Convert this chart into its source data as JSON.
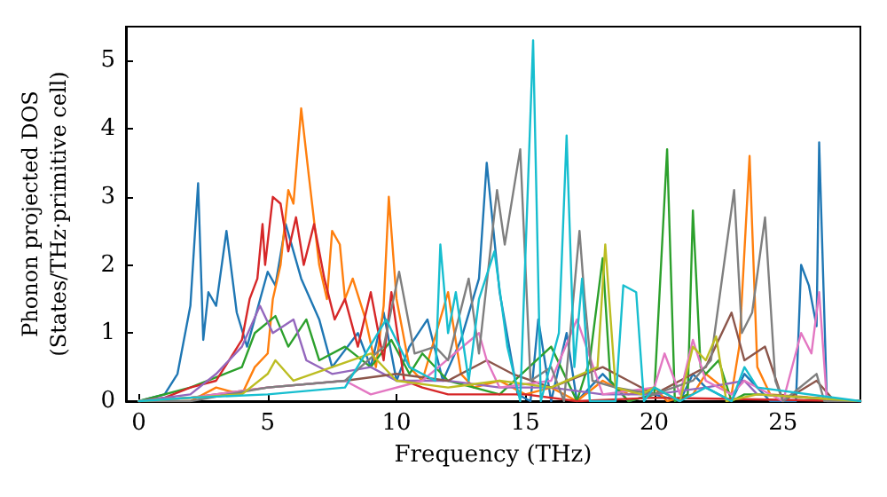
{
  "chart_data": {
    "type": "line",
    "xlabel": "Frequency (THz)",
    "ylabel": "Phonon projected DOS\n(States/THz·primitive cell)",
    "xlim": [
      -0.5,
      28
    ],
    "xticks": [
      0,
      5,
      10,
      15,
      20,
      25
    ],
    "ylim": [
      0,
      5.5
    ],
    "yticks": [
      0,
      1,
      2,
      3,
      4,
      5
    ],
    "grid": false,
    "marker": "none",
    "line_style": "solid",
    "series": [
      {
        "color": "#1f77b4",
        "x": [
          0,
          1,
          1.5,
          2,
          2.3,
          2.5,
          2.7,
          3,
          3.4,
          3.8,
          4.2,
          5,
          5.3,
          5.7,
          6.3,
          7,
          7.5,
          8.5,
          9,
          9.5,
          10,
          10.5,
          11.2,
          11.8,
          12.5,
          13.2,
          13.5,
          14,
          14.7,
          15.2,
          15.5,
          16,
          16.6,
          17,
          18,
          19,
          20,
          21,
          21.5,
          22,
          23,
          23.5,
          24,
          24.5,
          25.5,
          25.7,
          26,
          26.3,
          26.4,
          26.7,
          28
        ],
        "values": [
          0,
          0.1,
          0.4,
          1.4,
          3.2,
          0.9,
          1.6,
          1.4,
          2.5,
          1.3,
          0.8,
          1.9,
          1.7,
          2.6,
          1.8,
          1.2,
          0.5,
          1.0,
          0.5,
          1.3,
          0.3,
          0.8,
          1.2,
          0.3,
          0.9,
          1.8,
          3.5,
          1.6,
          0.1,
          0,
          1.2,
          0,
          1.0,
          0,
          0.4,
          0,
          0.1,
          0,
          0.4,
          0.2,
          0,
          0.4,
          0.2,
          0,
          0,
          2.0,
          1.7,
          1.1,
          3.8,
          0,
          0
        ]
      },
      {
        "color": "#ff7f0e",
        "x": [
          0,
          2,
          3,
          4,
          4.5,
          5,
          5.2,
          5.5,
          5.8,
          6,
          6.3,
          6.6,
          7,
          7.3,
          7.5,
          7.8,
          8,
          8.3,
          8.8,
          9.2,
          9.5,
          9.7,
          10,
          10.5,
          11,
          12,
          12.5,
          13,
          14,
          15,
          16,
          17,
          18,
          19,
          20,
          20.5,
          21.5,
          22,
          23,
          23.3,
          23.7,
          24,
          24.5,
          28
        ],
        "values": [
          0,
          0,
          0.2,
          0.1,
          0.5,
          0.7,
          1.5,
          2.0,
          3.1,
          2.9,
          4.3,
          3.3,
          2.0,
          1.5,
          2.5,
          2.3,
          1.5,
          1.8,
          1.2,
          0.5,
          1.4,
          3.0,
          1.5,
          0.5,
          0.3,
          1.6,
          0.4,
          0.2,
          0.3,
          0.1,
          0.2,
          0,
          0.3,
          0.1,
          0.2,
          0,
          0.1,
          0.4,
          0.1,
          0.8,
          3.6,
          0.5,
          0.1,
          0
        ]
      },
      {
        "color": "#2ca02c",
        "x": [
          0,
          2,
          4,
          4.5,
          5.3,
          5.8,
          6.5,
          7,
          8,
          9,
          9.8,
          10.5,
          11,
          12,
          13,
          14,
          16,
          17,
          17.5,
          18,
          18.3,
          19,
          20,
          20.5,
          20.8,
          21.3,
          21.5,
          21.8,
          22,
          22.5,
          23,
          23.5,
          24,
          28
        ],
        "values": [
          0,
          0.2,
          0.5,
          1.0,
          1.25,
          0.8,
          1.2,
          0.6,
          0.8,
          0.5,
          0.9,
          0.4,
          0.7,
          0.3,
          0.2,
          0.1,
          0.8,
          0,
          0.6,
          2.1,
          0.3,
          0,
          0.1,
          3.7,
          0,
          0.1,
          2.8,
          0.5,
          0.4,
          0.6,
          0,
          0.1,
          0.1,
          0
        ]
      },
      {
        "color": "#d62728",
        "x": [
          0,
          1,
          2,
          3,
          4,
          4.3,
          4.6,
          4.8,
          4.9,
          5.2,
          5.5,
          5.8,
          6.1,
          6.4,
          6.8,
          7.2,
          7.6,
          8,
          8.5,
          9,
          9.5,
          9.8,
          10.3,
          11,
          12,
          15,
          17,
          20,
          28
        ],
        "values": [
          0,
          0.05,
          0.2,
          0.3,
          0.9,
          1.5,
          1.8,
          2.6,
          2.0,
          3.0,
          2.9,
          2.2,
          2.7,
          2.0,
          2.6,
          1.8,
          1.2,
          1.5,
          0.8,
          1.6,
          0.6,
          1.6,
          0.3,
          0.2,
          0.1,
          0.1,
          0,
          0.05,
          0
        ]
      },
      {
        "color": "#9467bd",
        "x": [
          0,
          2,
          3,
          4,
          4.7,
          5.2,
          6,
          6.5,
          7.5,
          9,
          10,
          12,
          14,
          16,
          18,
          20,
          22,
          23.5,
          24,
          28
        ],
        "values": [
          0,
          0.1,
          0.4,
          0.8,
          1.4,
          1.0,
          1.2,
          0.6,
          0.4,
          0.5,
          0.3,
          0.3,
          0.2,
          0.2,
          0.1,
          0.1,
          0.2,
          0.3,
          0.1,
          0
        ]
      },
      {
        "color": "#8c564b",
        "x": [
          0,
          2,
          5,
          8,
          10,
          12,
          13.5,
          14.5,
          16,
          18,
          19,
          20,
          21.5,
          22,
          23,
          23.5,
          24.3,
          25,
          26.3,
          27,
          28
        ],
        "values": [
          0,
          0.05,
          0.2,
          0.3,
          0.4,
          0.3,
          0.6,
          0.4,
          0.2,
          0.5,
          0.3,
          0.1,
          0.4,
          0.5,
          1.3,
          0.6,
          0.8,
          0,
          0.3,
          0,
          0
        ]
      },
      {
        "color": "#e377c2",
        "x": [
          0,
          2,
          5,
          8,
          9,
          11,
          13.2,
          13.5,
          14,
          16,
          17,
          18,
          20,
          20.4,
          21,
          21.5,
          22,
          23,
          23.5,
          25,
          25.7,
          26.1,
          26.4,
          26.7,
          28
        ],
        "values": [
          0,
          0.05,
          0.2,
          0.3,
          0.1,
          0.3,
          1.0,
          0.6,
          0.2,
          0.3,
          1.2,
          0.1,
          0.2,
          0.7,
          0.1,
          0.9,
          0.3,
          0.1,
          0.3,
          0,
          1.0,
          0.7,
          1.6,
          0,
          0
        ]
      },
      {
        "color": "#7f7f7f",
        "x": [
          0,
          2,
          5,
          8,
          9.5,
          10.1,
          10.7,
          11.5,
          12,
          12.8,
          13.2,
          13.9,
          14.2,
          14.8,
          15.2,
          16,
          16.5,
          17.1,
          17.3,
          17.6,
          18.5,
          20,
          21.5,
          22.2,
          23.1,
          23.4,
          23.8,
          24.3,
          24.7,
          25,
          26.3,
          26.6,
          28
        ],
        "values": [
          0,
          0,
          0.2,
          0.3,
          0.8,
          1.9,
          0.7,
          0.8,
          0.6,
          1.8,
          0.7,
          3.1,
          2.3,
          3.7,
          0.3,
          0.5,
          0,
          2.5,
          1.5,
          0.3,
          0.2,
          0.1,
          0.3,
          0.6,
          3.1,
          1.0,
          1.3,
          2.7,
          0.3,
          0,
          0.4,
          0,
          0
        ]
      },
      {
        "color": "#bcbd22",
        "x": [
          0,
          2,
          4,
          5,
          5.3,
          6,
          9,
          10,
          12,
          14,
          16,
          17.8,
          18.1,
          18.5,
          19.5,
          20,
          21,
          21.5,
          22,
          22.4,
          22.8,
          24,
          28
        ],
        "values": [
          0,
          0.05,
          0.1,
          0.4,
          0.6,
          0.3,
          0.7,
          0.3,
          0.2,
          0.3,
          0.2,
          0.5,
          2.3,
          0.2,
          0.1,
          0.2,
          0,
          0.8,
          0.6,
          0.95,
          0,
          0.1,
          0
        ]
      },
      {
        "color": "#17becf",
        "x": [
          0,
          2,
          5,
          8,
          9.6,
          10.5,
          11.5,
          11.7,
          12,
          12.3,
          12.8,
          13.2,
          13.8,
          14.3,
          14.8,
          15.3,
          15.6,
          16.3,
          16.6,
          16.9,
          17.2,
          17.5,
          18.5,
          18.8,
          19.3,
          19.6,
          20,
          21,
          22,
          23,
          23.5,
          24,
          28
        ],
        "values": [
          0,
          0.05,
          0.1,
          0.2,
          1.2,
          0.5,
          0.3,
          2.3,
          1.0,
          1.6,
          0.3,
          1.5,
          2.2,
          0.8,
          0,
          5.3,
          0,
          1.0,
          3.9,
          0.5,
          1.8,
          0,
          0,
          1.7,
          1.6,
          0,
          0.2,
          0,
          0.2,
          0,
          0.5,
          0.2,
          0
        ]
      }
    ]
  }
}
